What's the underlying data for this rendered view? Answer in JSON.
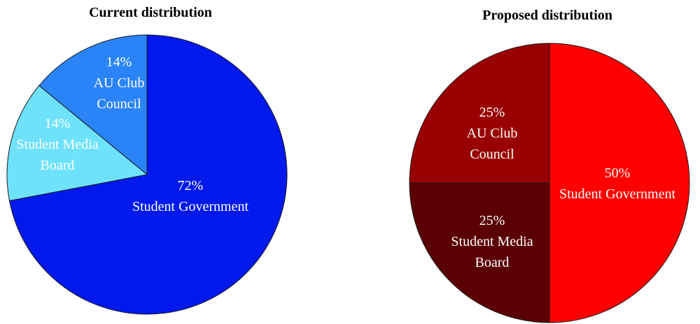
{
  "chart_data": [
    {
      "type": "pie",
      "title": "Current distribution",
      "slices": [
        {
          "value": 72,
          "label": "72%",
          "name": "Student Government",
          "label_lines": [
            "72%",
            "Student Government"
          ],
          "color": "#0219ee"
        },
        {
          "value": 14,
          "label": "14%",
          "name": "Student Media Board",
          "label_lines": [
            "14%",
            "Student Media",
            "Board"
          ],
          "color": "#6ee2fb"
        },
        {
          "value": 14,
          "label": "14%",
          "name": "AU Club Council",
          "label_lines": [
            "14%",
            "AU Club",
            "Council"
          ],
          "color": "#2a84f8"
        }
      ]
    },
    {
      "type": "pie",
      "title": "Proposed distribution",
      "slices": [
        {
          "value": 50,
          "label": "50%",
          "name": "Student Government",
          "label_lines": [
            "50%",
            "Student Government"
          ],
          "color": "#fe0000"
        },
        {
          "value": 25,
          "label": "25%",
          "name": "Student Media Board",
          "label_lines": [
            "25%",
            "Student Media",
            "Board"
          ],
          "color": "#5a0002"
        },
        {
          "value": 25,
          "label": "25%",
          "name": "AU Club Council",
          "label_lines": [
            "25%",
            "AU Club",
            "Council"
          ],
          "color": "#990001"
        }
      ]
    }
  ]
}
